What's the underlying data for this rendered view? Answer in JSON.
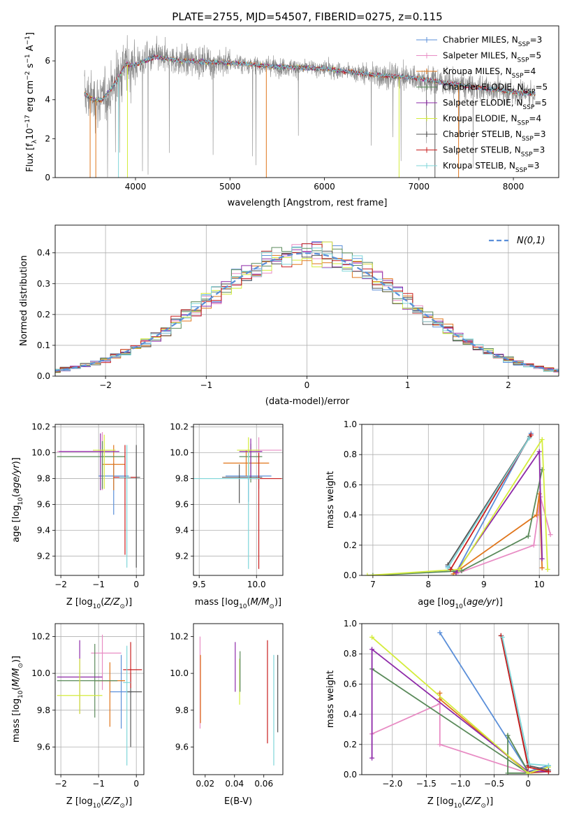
{
  "title": "PLATE=2755, MJD=54507, FIBERID=0275, z=0.115",
  "colors": {
    "Chabrier MILES": "#5b8fd9",
    "Salpeter MILES": "#e88cc4",
    "Kroupa MILES": "#e0761c",
    "Chabrier ELODIE": "#5a8a5a",
    "Salpeter ELODIE": "#8e2aa8",
    "Kroupa ELODIE": "#d4ec3c",
    "Chabrier STELIB": "#555555",
    "Salpeter STELIB": "#c81e1e",
    "Kroupa STELIB": "#7fd6d9",
    "observed": "#888888",
    "gaussian": "#5b8fd9"
  },
  "legend_spectrum": [
    {
      "name": "Chabrier MILES",
      "nssp": "3"
    },
    {
      "name": "Salpeter MILES",
      "nssp": "5"
    },
    {
      "name": "Kroupa MILES",
      "nssp": "4"
    },
    {
      "name": "Chabrier ELODIE",
      "nssp": "5"
    },
    {
      "name": "Salpeter ELODIE",
      "nssp": "5"
    },
    {
      "name": "Kroupa ELODIE",
      "nssp": "4"
    },
    {
      "name": "Chabrier STELIB",
      "nssp": "3"
    },
    {
      "name": "Salpeter STELIB",
      "nssp": "3"
    },
    {
      "name": "Kroupa STELIB",
      "nssp": "3"
    }
  ],
  "chart_data": [
    {
      "id": "spectrum",
      "type": "line",
      "xlabel": "wavelength [Angstrom, rest frame]",
      "ylabel": "Flux [f_λ 10^-17 erg cm^-2 s^-1 A^-1]",
      "xlim": [
        3150,
        8480
      ],
      "ylim": [
        0,
        7.8
      ],
      "xticks": [
        4000,
        5000,
        6000,
        7000,
        8000
      ],
      "yticks": [
        0,
        2,
        4,
        6
      ],
      "continuum": [
        [
          3460,
          4.3
        ],
        [
          3550,
          4.0
        ],
        [
          3650,
          4.0
        ],
        [
          3750,
          4.6
        ],
        [
          3900,
          5.8
        ],
        [
          4000,
          5.8
        ],
        [
          4200,
          6.2
        ],
        [
          4500,
          6.0
        ],
        [
          5000,
          5.9
        ],
        [
          5500,
          5.7
        ],
        [
          6000,
          5.6
        ],
        [
          6500,
          5.3
        ],
        [
          7000,
          5.1
        ],
        [
          7500,
          4.7
        ],
        [
          8000,
          4.4
        ],
        [
          8230,
          4.3
        ]
      ],
      "legend": "upper right",
      "grid": false
    },
    {
      "id": "residuals",
      "type": "step",
      "xlabel": "(data-model)/error",
      "ylabel": "Normed distribution",
      "xlim": [
        -2.5,
        2.5
      ],
      "ylim": [
        0,
        0.49
      ],
      "xticks": [
        -2,
        -1,
        0,
        1,
        2
      ],
      "yticks": [
        0,
        0.1,
        0.2,
        0.3,
        0.4
      ],
      "gaussian_label": "N(0,1)",
      "legend": "upper right",
      "grid": true
    },
    {
      "id": "age_vs_Z",
      "type": "errorbar",
      "xlabel": "Z [log10(Z/Z☉)]",
      "ylabel": "age  [log10(age/yr)]",
      "xlim": [
        -2.15,
        0.2
      ],
      "ylim": [
        9.05,
        10.22
      ],
      "xticks": [
        -2,
        -1,
        0
      ],
      "yticks": [
        9.2,
        9.4,
        9.6,
        9.8,
        10.0,
        10.2
      ],
      "points": [
        {
          "model": "Chabrier MILES",
          "x": -0.6,
          "y": 9.82,
          "xerr": [
            0.4,
            0.4
          ],
          "yerr": [
            0.3,
            0.1
          ]
        },
        {
          "model": "Salpeter MILES",
          "x": -0.9,
          "y": 10.01,
          "xerr": [
            1.2,
            0.2
          ],
          "yerr": [
            0.3,
            0.15
          ]
        },
        {
          "model": "Kroupa MILES",
          "x": -0.6,
          "y": 9.91,
          "xerr": [
            0.3,
            0.3
          ],
          "yerr": [
            0.2,
            0.15
          ]
        },
        {
          "model": "Chabrier ELODIE",
          "x": -0.9,
          "y": 9.97,
          "xerr": [
            1.2,
            0.6
          ],
          "yerr": [
            0.25,
            0.12
          ]
        },
        {
          "model": "Salpeter ELODIE",
          "x": -0.95,
          "y": 10.01,
          "xerr": [
            1.1,
            0.5
          ],
          "yerr": [
            0.3,
            0.14
          ]
        },
        {
          "model": "Kroupa ELODIE",
          "x": -0.85,
          "y": 10.02,
          "xerr": [
            0.3,
            0.3
          ],
          "yerr": [
            0.3,
            0.12
          ]
        },
        {
          "model": "Chabrier STELIB",
          "x": 0.0,
          "y": 9.81,
          "xerr": [
            0.3,
            0.1
          ],
          "yerr": [
            0.7,
            0.25
          ]
        },
        {
          "model": "Salpeter STELIB",
          "x": -0.3,
          "y": 9.81,
          "xerr": [
            0.3,
            0.3
          ],
          "yerr": [
            0.6,
            0.25
          ]
        },
        {
          "model": "Kroupa STELIB",
          "x": -0.25,
          "y": 9.81,
          "xerr": [
            0.2,
            0.1
          ],
          "yerr": [
            0.7,
            0.25
          ]
        }
      ],
      "grid": true
    },
    {
      "id": "age_vs_mass",
      "type": "errorbar",
      "xlabel": "mass [log10(M/M☉)]",
      "ylabel": "",
      "xlim": [
        9.45,
        10.23
      ],
      "ylim": [
        9.05,
        10.22
      ],
      "xticks": [
        9.5,
        10.0
      ],
      "yticks": [
        9.2,
        9.4,
        9.6,
        9.8,
        10.0,
        10.2
      ],
      "points": [
        {
          "model": "Chabrier MILES",
          "x": 9.93,
          "y": 9.82,
          "xerr": [
            0.2,
            0.2
          ],
          "yerr": [
            0.2,
            0.2
          ]
        },
        {
          "model": "Salpeter MILES",
          "x": 10.02,
          "y": 10.02,
          "xerr": [
            0.1,
            0.2
          ],
          "yerr": [
            0.3,
            0.1
          ]
        },
        {
          "model": "Kroupa MILES",
          "x": 9.91,
          "y": 9.92,
          "xerr": [
            0.2,
            0.2
          ],
          "yerr": [
            0.1,
            0.1
          ]
        },
        {
          "model": "Chabrier ELODIE",
          "x": 9.95,
          "y": 9.97,
          "xerr": [
            0.1,
            0.1
          ],
          "yerr": [
            0.2,
            0.1
          ]
        },
        {
          "model": "Salpeter ELODIE",
          "x": 9.95,
          "y": 10.01,
          "xerr": [
            0.1,
            0.1
          ],
          "yerr": [
            0.2,
            0.1
          ]
        },
        {
          "model": "Kroupa ELODIE",
          "x": 9.93,
          "y": 10.02,
          "xerr": [
            0.1,
            0.1
          ],
          "yerr": [
            0.2,
            0.1
          ]
        },
        {
          "model": "Chabrier STELIB",
          "x": 9.85,
          "y": 9.81,
          "xerr": [
            0.15,
            0.2
          ],
          "yerr": [
            0.2,
            0.1
          ]
        },
        {
          "model": "Salpeter STELIB",
          "x": 10.02,
          "y": 9.8,
          "xerr": [
            0.1,
            0.2
          ],
          "yerr": [
            0.7,
            0.2
          ]
        },
        {
          "model": "Kroupa STELIB",
          "x": 9.93,
          "y": 9.8,
          "xerr": [
            0.5,
            0.1
          ],
          "yerr": [
            0.7,
            0.2
          ]
        }
      ],
      "grid": true
    },
    {
      "id": "weight_vs_age",
      "type": "line",
      "xlabel": "age  [log10(age/yr)]",
      "ylabel": "mass weight",
      "xlim": [
        6.8,
        10.35
      ],
      "ylim": [
        0,
        1.0
      ],
      "xticks": [
        7,
        8,
        9,
        10
      ],
      "yticks": [
        0,
        0.2,
        0.4,
        0.6,
        0.8,
        1.0
      ],
      "series": [
        {
          "model": "Chabrier MILES",
          "x": [
            8.35,
            8.5,
            9.85
          ],
          "y": [
            0.06,
            0.02,
            0.94
          ]
        },
        {
          "model": "Salpeter MILES",
          "x": [
            8.5,
            9.9,
            10.02,
            10.2
          ],
          "y": [
            0.01,
            0.2,
            0.52,
            0.27
          ]
        },
        {
          "model": "Kroupa MILES",
          "x": [
            8.45,
            9.95,
            10.0,
            10.05
          ],
          "y": [
            0.01,
            0.4,
            0.54,
            0.05
          ]
        },
        {
          "model": "Chabrier ELODIE",
          "x": [
            7.0,
            8.6,
            9.8,
            10.05
          ],
          "y": [
            0.0,
            0.03,
            0.26,
            0.7
          ]
        },
        {
          "model": "Salpeter ELODIE",
          "x": [
            8.5,
            10.0,
            10.05
          ],
          "y": [
            0.02,
            0.82,
            0.11
          ]
        },
        {
          "model": "Kroupa ELODIE",
          "x": [
            6.9,
            8.55,
            10.05,
            10.15
          ],
          "y": [
            0.0,
            0.04,
            0.9,
            0.04
          ]
        },
        {
          "model": "Chabrier STELIB",
          "x": [
            8.35,
            9.83
          ],
          "y": [
            0.07,
            0.92
          ]
        },
        {
          "model": "Salpeter STELIB",
          "x": [
            8.4,
            9.85
          ],
          "y": [
            0.04,
            0.93
          ]
        },
        {
          "model": "Kroupa STELIB",
          "x": [
            8.35,
            9.82
          ],
          "y": [
            0.05,
            0.91
          ]
        }
      ],
      "grid": true
    },
    {
      "id": "mass_vs_Z",
      "type": "errorbar",
      "xlabel": "Z [log10(Z/Z☉)]",
      "ylabel": "mass [log10(M/M☉)]",
      "xlim": [
        -2.15,
        0.2
      ],
      "ylim": [
        9.45,
        10.27
      ],
      "xticks": [
        -2,
        -1,
        0
      ],
      "yticks": [
        9.6,
        9.8,
        10.0,
        10.2
      ],
      "points": [
        {
          "model": "Chabrier MILES",
          "x": -0.4,
          "y": 9.9,
          "xerr": [
            0.3,
            0.3
          ],
          "yerr": [
            0.2,
            0.2
          ]
        },
        {
          "model": "Salpeter MILES",
          "x": -0.9,
          "y": 10.11,
          "xerr": [
            0.3,
            0.5
          ],
          "yerr": [
            0.2,
            0.1
          ]
        },
        {
          "model": "Kroupa MILES",
          "x": -0.7,
          "y": 9.96,
          "xerr": [
            0.4,
            0.4
          ],
          "yerr": [
            0.25,
            0.1
          ]
        },
        {
          "model": "Chabrier ELODIE",
          "x": -1.1,
          "y": 9.96,
          "xerr": [
            1.0,
            0.6
          ],
          "yerr": [
            0.2,
            0.2
          ]
        },
        {
          "model": "Salpeter ELODIE",
          "x": -1.5,
          "y": 9.98,
          "xerr": [
            0.6,
            0.6
          ],
          "yerr": [
            0.2,
            0.2
          ]
        },
        {
          "model": "Kroupa ELODIE",
          "x": -1.5,
          "y": 9.88,
          "xerr": [
            0.6,
            0.6
          ],
          "yerr": [
            0.1,
            0.2
          ]
        },
        {
          "model": "Chabrier STELIB",
          "x": -0.15,
          "y": 9.9,
          "xerr": [
            0.1,
            0.3
          ],
          "yerr": [
            0.3,
            0.1
          ]
        },
        {
          "model": "Salpeter STELIB",
          "x": -0.15,
          "y": 10.02,
          "xerr": [
            0.2,
            0.3
          ],
          "yerr": [
            0.1,
            0.15
          ]
        },
        {
          "model": "Kroupa STELIB",
          "x": -0.25,
          "y": 9.95,
          "xerr": [
            0.1,
            0.1
          ],
          "yerr": [
            0.45,
            0.2
          ]
        }
      ],
      "grid": true
    },
    {
      "id": "mass_vs_ebv",
      "type": "errorbar",
      "xlabel": "E(B-V)",
      "ylabel": "",
      "xlim": [
        0.012,
        0.073
      ],
      "ylim": [
        9.45,
        10.27
      ],
      "xticks": [
        0.02,
        0.04,
        0.06
      ],
      "yticks": [
        9.6,
        9.8,
        10.0,
        10.2
      ],
      "points": [
        {
          "model": "Salpeter MILES",
          "x": 0.0165,
          "y": 10.0,
          "yerr": [
            0.3,
            0.2
          ]
        },
        {
          "model": "Kroupa MILES",
          "x": 0.0168,
          "y": 9.9,
          "yerr": [
            0.17,
            0.2
          ]
        },
        {
          "model": "Salpeter ELODIE",
          "x": 0.0405,
          "y": 10.0,
          "yerr": [
            0.1,
            0.17
          ]
        },
        {
          "model": "Kroupa ELODIE",
          "x": 0.0435,
          "y": 9.95,
          "yerr": [
            0.12,
            0.13
          ]
        },
        {
          "model": "Chabrier ELODIE",
          "x": 0.0438,
          "y": 10.0,
          "yerr": [
            0.1,
            0.12
          ]
        },
        {
          "model": "Salpeter STELIB",
          "x": 0.0625,
          "y": 9.9,
          "yerr": [
            0.28,
            0.28
          ]
        },
        {
          "model": "Kroupa STELIB",
          "x": 0.0668,
          "y": 9.8,
          "yerr": [
            0.3,
            0.3
          ]
        },
        {
          "model": "Chabrier STELIB",
          "x": 0.0695,
          "y": 9.9,
          "yerr": [
            0.22,
            0.2
          ]
        }
      ],
      "grid": false
    },
    {
      "id": "weight_vs_Z",
      "type": "line",
      "xlabel": "Z [log10(Z/Z☉)]",
      "ylabel": "mass weight",
      "xlim": [
        -2.45,
        0.45
      ],
      "ylim": [
        0,
        1.0
      ],
      "xticks": [
        -2.0,
        -1.5,
        -1.0,
        -0.5,
        0.0
      ],
      "yticks": [
        0,
        0.2,
        0.4,
        0.6,
        0.8,
        1.0
      ],
      "series": [
        {
          "model": "Chabrier MILES",
          "x": [
            -1.3,
            0.0,
            0.3
          ],
          "y": [
            0.94,
            0.02,
            0.06
          ]
        },
        {
          "model": "Salpeter MILES",
          "x": [
            -2.3,
            -1.3,
            -1.3,
            0.0,
            0.3
          ],
          "y": [
            0.27,
            0.47,
            0.2,
            0.01,
            0.03
          ]
        },
        {
          "model": "Kroupa MILES",
          "x": [
            -1.3,
            -1.3,
            0.0,
            0.3
          ],
          "y": [
            0.54,
            0.5,
            0.01,
            0.02
          ]
        },
        {
          "model": "Chabrier ELODIE",
          "x": [
            -2.3,
            0.0,
            -0.3,
            -0.3,
            0.0
          ],
          "y": [
            0.7,
            0.01,
            0.01,
            0.26,
            0.02
          ]
        },
        {
          "model": "Salpeter ELODIE",
          "x": [
            -2.3,
            -2.3,
            0.0,
            0.3
          ],
          "y": [
            0.11,
            0.83,
            0.02,
            0.02
          ]
        },
        {
          "model": "Kroupa ELODIE",
          "x": [
            -2.3,
            0.0,
            0.3
          ],
          "y": [
            0.91,
            0.01,
            0.05
          ]
        },
        {
          "model": "Chabrier STELIB",
          "x": [
            -0.4,
            0.0,
            0.3
          ],
          "y": [
            0.92,
            0.06,
            0.03
          ]
        },
        {
          "model": "Salpeter STELIB",
          "x": [
            -0.4,
            0.0,
            0.3
          ],
          "y": [
            0.92,
            0.05,
            0.02
          ]
        },
        {
          "model": "Kroupa STELIB",
          "x": [
            -0.38,
            0.02,
            0.3
          ],
          "y": [
            0.91,
            0.07,
            0.06
          ]
        }
      ],
      "grid": true
    }
  ]
}
